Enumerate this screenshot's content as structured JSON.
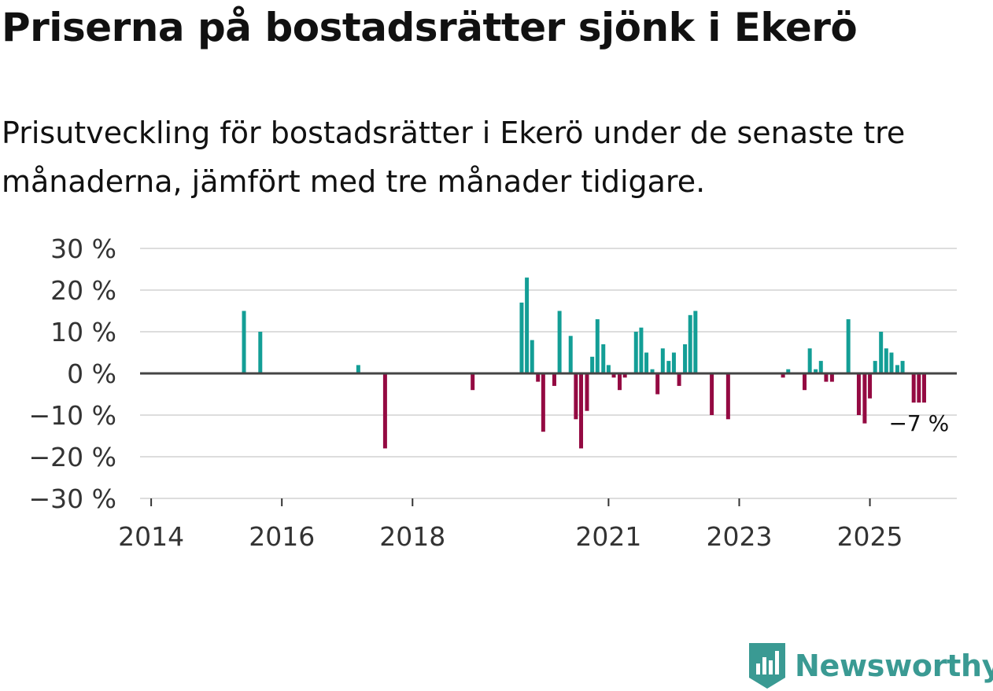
{
  "title": "Priserna på bostadsrätter sjönk i Ekerö",
  "subtitle": "Prisutveckling för bostadsrätter i Ekerö under de senaste tre månaderna, jämfört med tre månader tidigare.",
  "brand": {
    "name": "Newsworthy",
    "color": "#3a9a93"
  },
  "colors": {
    "positive": "#139e96",
    "negative": "#940a42",
    "grid": "#dddddd",
    "zero_line": "#444444"
  },
  "chart_data": {
    "type": "bar",
    "title": "Priserna på bostadsrätter sjönk i Ekerö",
    "xlabel": "",
    "ylabel": "",
    "x_range": [
      2013.83,
      2026.33
    ],
    "ylim": [
      -30,
      30
    ],
    "y_ticks": [
      30,
      20,
      10,
      0,
      -10,
      -20,
      -30
    ],
    "y_tick_labels": [
      "30 %",
      "20 %",
      "10 %",
      "0 %",
      "−10 %",
      "−20 %",
      "−30 %"
    ],
    "x_ticks": [
      2014,
      2016,
      2018,
      2021,
      2023,
      2025
    ],
    "x_tick_labels": [
      "2014",
      "2016",
      "2018",
      "2021",
      "2023",
      "2025"
    ],
    "annotation": {
      "x": 2025.75,
      "label": "−7 %"
    },
    "series": [
      {
        "name": "Prisutveckling",
        "points": [
          {
            "x": 2015.42,
            "y": 15
          },
          {
            "x": 2015.67,
            "y": 10
          },
          {
            "x": 2017.17,
            "y": 2
          },
          {
            "x": 2017.58,
            "y": -18
          },
          {
            "x": 2018.92,
            "y": -4
          },
          {
            "x": 2019.67,
            "y": 17
          },
          {
            "x": 2019.75,
            "y": 23
          },
          {
            "x": 2019.83,
            "y": 8
          },
          {
            "x": 2019.92,
            "y": -2
          },
          {
            "x": 2020.0,
            "y": -14
          },
          {
            "x": 2020.17,
            "y": -3
          },
          {
            "x": 2020.25,
            "y": 15
          },
          {
            "x": 2020.42,
            "y": 9
          },
          {
            "x": 2020.5,
            "y": -11
          },
          {
            "x": 2020.58,
            "y": -18
          },
          {
            "x": 2020.67,
            "y": -9
          },
          {
            "x": 2020.75,
            "y": 4
          },
          {
            "x": 2020.83,
            "y": 13
          },
          {
            "x": 2020.92,
            "y": 7
          },
          {
            "x": 2021.0,
            "y": 2
          },
          {
            "x": 2021.08,
            "y": -1
          },
          {
            "x": 2021.17,
            "y": -4
          },
          {
            "x": 2021.25,
            "y": -1
          },
          {
            "x": 2021.42,
            "y": 10
          },
          {
            "x": 2021.5,
            "y": 11
          },
          {
            "x": 2021.58,
            "y": 5
          },
          {
            "x": 2021.67,
            "y": 1
          },
          {
            "x": 2021.75,
            "y": -5
          },
          {
            "x": 2021.83,
            "y": 6
          },
          {
            "x": 2021.92,
            "y": 3
          },
          {
            "x": 2022.0,
            "y": 5
          },
          {
            "x": 2022.08,
            "y": -3
          },
          {
            "x": 2022.17,
            "y": 7
          },
          {
            "x": 2022.25,
            "y": 14
          },
          {
            "x": 2022.33,
            "y": 15
          },
          {
            "x": 2022.58,
            "y": -10
          },
          {
            "x": 2022.83,
            "y": -11
          },
          {
            "x": 2023.67,
            "y": -1
          },
          {
            "x": 2023.75,
            "y": 1
          },
          {
            "x": 2024.0,
            "y": -4
          },
          {
            "x": 2024.08,
            "y": 6
          },
          {
            "x": 2024.17,
            "y": 1
          },
          {
            "x": 2024.25,
            "y": 3
          },
          {
            "x": 2024.33,
            "y": -2
          },
          {
            "x": 2024.42,
            "y": -2
          },
          {
            "x": 2024.67,
            "y": 13
          },
          {
            "x": 2024.83,
            "y": -10
          },
          {
            "x": 2024.92,
            "y": -12
          },
          {
            "x": 2025.0,
            "y": -6
          },
          {
            "x": 2025.08,
            "y": 3
          },
          {
            "x": 2025.17,
            "y": 10
          },
          {
            "x": 2025.25,
            "y": 6
          },
          {
            "x": 2025.33,
            "y": 5
          },
          {
            "x": 2025.42,
            "y": 2
          },
          {
            "x": 2025.5,
            "y": 3
          },
          {
            "x": 2025.67,
            "y": -7
          },
          {
            "x": 2025.75,
            "y": -7
          },
          {
            "x": 2025.83,
            "y": -7
          }
        ]
      }
    ]
  }
}
